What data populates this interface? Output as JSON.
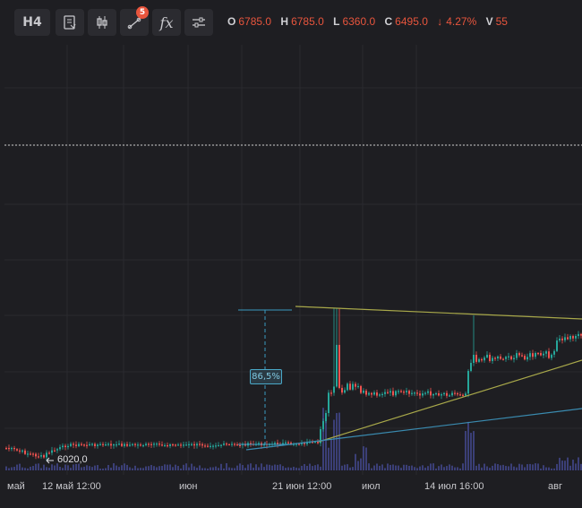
{
  "toolbar": {
    "interval": "H4",
    "indicators_badge": "5",
    "fx_label": "fx"
  },
  "ohlc": {
    "o_key": "O",
    "o_val": "6785.0",
    "h_key": "H",
    "h_val": "6785.0",
    "l_key": "L",
    "l_val": "6360.0",
    "c_key": "C",
    "c_val": "6495.0",
    "change": "4.27%",
    "v_key": "V",
    "v_val": "55"
  },
  "x_axis": {
    "labels": [
      "май",
      "12 май 12:00",
      "июн",
      "21 июн 12:00",
      "июл",
      "14 июл 16:00",
      "авг"
    ]
  },
  "annotations": {
    "measure_pct": "86,5%",
    "low_label": "6020,0"
  },
  "colors": {
    "up": "#26a69a",
    "down": "#ef5350",
    "volume": "#3b3f77",
    "trendline": "#a8a84a",
    "blue_line": "#3a8bb0",
    "background": "#1e1e22"
  }
}
